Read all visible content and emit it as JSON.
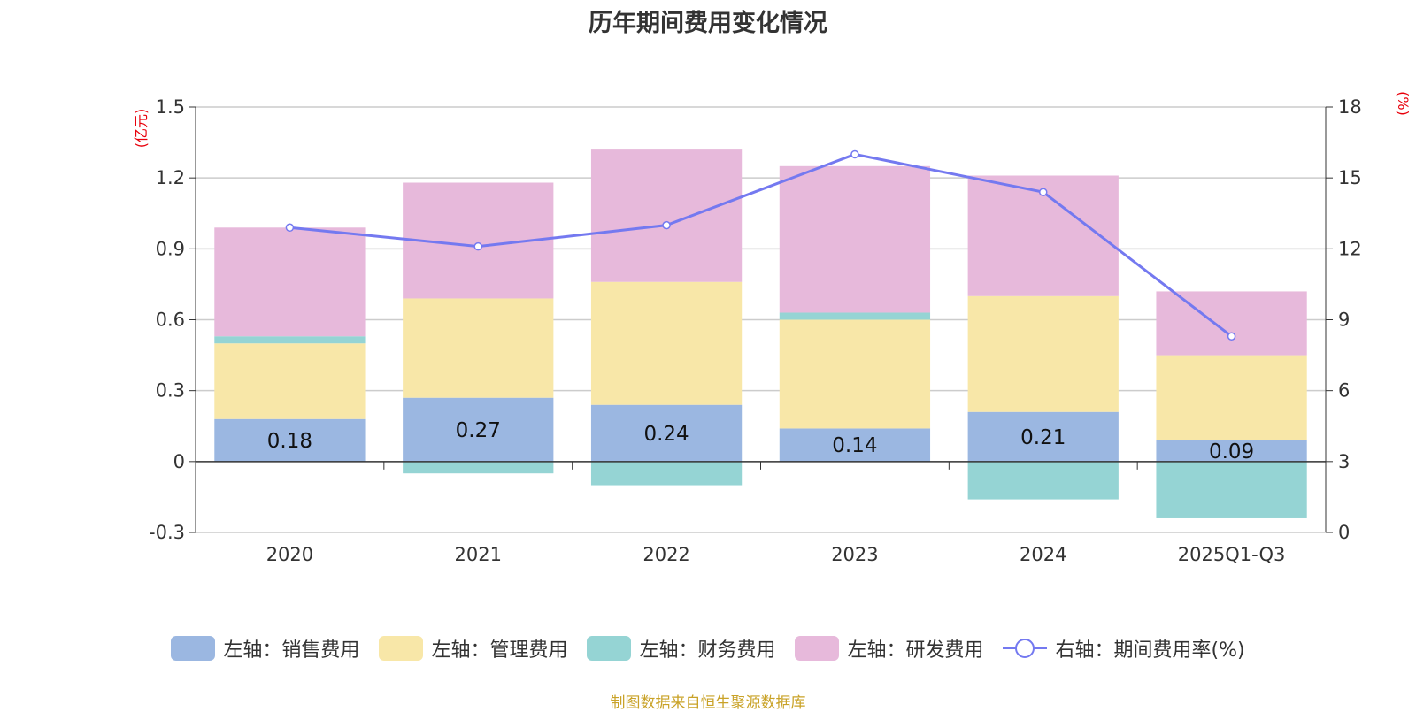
{
  "chart_data": {
    "type": "bar",
    "stacked": true,
    "title": "历年期间费用变化情况",
    "categories": [
      "2020",
      "2021",
      "2022",
      "2023",
      "2024",
      "2025Q1-Q3"
    ],
    "left_axis": {
      "unit": "(亿元)",
      "ylim": [
        -0.3,
        1.5
      ],
      "ticks": [
        "-0.3",
        "0",
        "0.3",
        "0.6",
        "0.9",
        "1.2",
        "1.5"
      ]
    },
    "right_axis": {
      "unit": "(%)",
      "ylim": [
        0,
        18
      ],
      "ticks": [
        "0",
        "3",
        "6",
        "9",
        "12",
        "15",
        "18"
      ]
    },
    "series": [
      {
        "name": "左轴：销售费用",
        "axis": "left",
        "color": "#9bb7e1",
        "values": [
          0.18,
          0.27,
          0.24,
          0.14,
          0.21,
          0.09
        ],
        "labels": [
          "0.18",
          "0.27",
          "0.24",
          "0.14",
          "0.21",
          "0.09"
        ]
      },
      {
        "name": "左轴：管理费用",
        "axis": "left",
        "color": "#f8e7a8",
        "values": [
          0.32,
          0.42,
          0.52,
          0.46,
          0.49,
          0.36
        ]
      },
      {
        "name": "左轴：财务费用",
        "axis": "left",
        "color": "#95d4d4",
        "values": [
          0.03,
          -0.05,
          -0.1,
          0.03,
          -0.16,
          -0.24
        ]
      },
      {
        "name": "左轴：研发费用",
        "axis": "left",
        "color": "#e7b9db",
        "values": [
          0.46,
          0.49,
          0.56,
          0.62,
          0.51,
          0.27
        ]
      },
      {
        "name": "右轴：期间费用率(%)",
        "axis": "right",
        "type": "line",
        "color": "#7479f0",
        "values": [
          12.9,
          12.1,
          13.0,
          16.0,
          14.4,
          8.3
        ]
      }
    ],
    "grid": true,
    "legend_position": "bottom"
  },
  "source": "制图数据来自恒生聚源数据库"
}
